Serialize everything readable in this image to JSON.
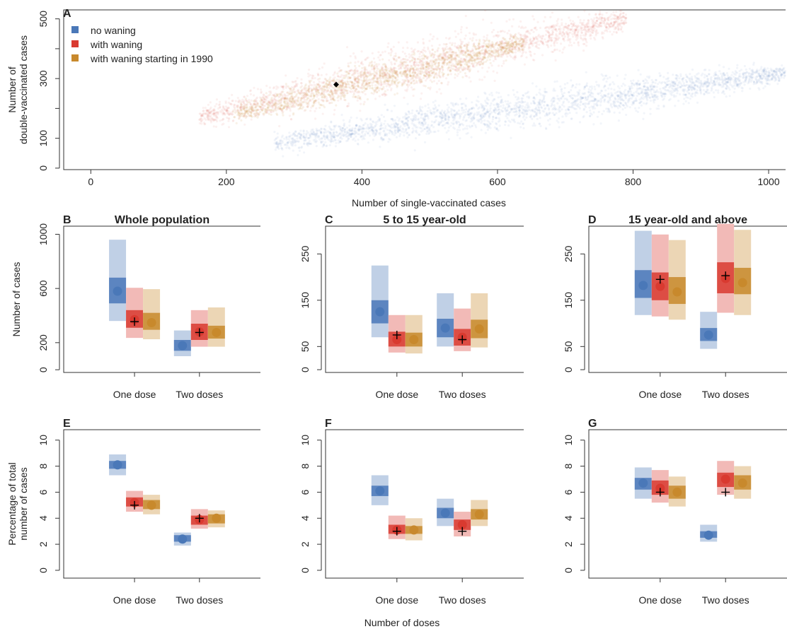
{
  "colors": {
    "no_waning": "#4a78b8",
    "with_waning": "#d93a30",
    "with_waning_1990": "#c8892c",
    "axis": "#333333",
    "marker": "#000000"
  },
  "footer_xlabel": "Number of doses",
  "chart_data": [
    {
      "panel": "A",
      "type": "scatter",
      "xlabel": "Number of single-vaccinated cases",
      "ylabel": [
        "Number of",
        "double-vaccinated cases"
      ],
      "xlim": [
        -40,
        1025
      ],
      "ylim": [
        -5,
        530
      ],
      "xticks": [
        0,
        200,
        400,
        600,
        800,
        1000
      ],
      "yticks": [
        0,
        100,
        300,
        500
      ],
      "legend": {
        "placement": "top-left",
        "entries": [
          "no waning",
          "with waning",
          "with waning starting in 1990"
        ]
      },
      "clouds": [
        {
          "name": "no waning",
          "x_range": [
            270,
            1030
          ],
          "y_at_x_start": 85,
          "y_at_x_end": 320,
          "spread": 22,
          "points": 2600
        },
        {
          "name": "with waning",
          "x_range": [
            160,
            790
          ],
          "y_at_x_start": 170,
          "y_at_x_end": 500,
          "spread": 28,
          "points": 2200
        },
        {
          "name": "with waning starting in 1990",
          "x_range": [
            210,
            640
          ],
          "y_at_x_start": 180,
          "y_at_x_end": 420,
          "spread": 20,
          "points": 1400
        }
      ],
      "observed": {
        "x": 362,
        "y": 280
      }
    },
    {
      "panel": "B",
      "type": "box",
      "title": "Whole population",
      "ylabel": "Number of cases",
      "ylim": [
        -20,
        1060
      ],
      "yticks": [
        0,
        200,
        600,
        1000
      ],
      "categories": [
        "One dose",
        "Two doses"
      ],
      "series": [
        {
          "name": "no waning",
          "values": [
            {
              "outer": [
                360,
                960
              ],
              "inner": [
                490,
                680
              ],
              "median": 580
            },
            {
              "outer": [
                100,
                290
              ],
              "inner": [
                140,
                220
              ],
              "median": 178
            }
          ]
        },
        {
          "name": "with waning",
          "values": [
            {
              "outer": [
                235,
                605
              ],
              "inner": [
                310,
                440
              ],
              "median": 370
            },
            {
              "outer": [
                170,
                440
              ],
              "inner": [
                220,
                340
              ],
              "median": 280
            }
          ]
        },
        {
          "name": "with waning starting in 1990",
          "values": [
            {
              "outer": [
                225,
                595
              ],
              "inner": [
                295,
                420
              ],
              "median": 348
            },
            {
              "outer": [
                170,
                460
              ],
              "inner": [
                230,
                325
              ],
              "median": 275
            }
          ]
        }
      ],
      "observed": [
        355,
        275
      ]
    },
    {
      "panel": "C",
      "type": "box",
      "title": "5 to 15 year-old",
      "ylabel": "",
      "ylim": [
        -6,
        310
      ],
      "yticks": [
        0,
        50,
        150,
        250
      ],
      "categories": [
        "One dose",
        "Two doses"
      ],
      "series": [
        {
          "name": "no waning",
          "values": [
            {
              "outer": [
                70,
                225
              ],
              "inner": [
                100,
                150
              ],
              "median": 125
            },
            {
              "outer": [
                50,
                165
              ],
              "inner": [
                70,
                110
              ],
              "median": 90
            }
          ]
        },
        {
          "name": "with waning",
          "values": [
            {
              "outer": [
                37,
                118
              ],
              "inner": [
                50,
                82
              ],
              "median": 65
            },
            {
              "outer": [
                40,
                132
              ],
              "inner": [
                52,
                88
              ],
              "median": 70
            }
          ]
        },
        {
          "name": "with waning starting in 1990",
          "values": [
            {
              "outer": [
                35,
                118
              ],
              "inner": [
                50,
                80
              ],
              "median": 65
            },
            {
              "outer": [
                48,
                165
              ],
              "inner": [
                68,
                108
              ],
              "median": 88
            }
          ]
        }
      ],
      "observed": [
        75,
        65
      ]
    },
    {
      "panel": "D",
      "type": "box",
      "title": "15 year-old and above",
      "ylabel": "",
      "ylim": [
        -6,
        310
      ],
      "yticks": [
        0,
        50,
        150,
        250
      ],
      "categories": [
        "One dose",
        "Two doses"
      ],
      "series": [
        {
          "name": "no waning",
          "values": [
            {
              "outer": [
                118,
                300
              ],
              "inner": [
                155,
                215
              ],
              "median": 182
            },
            {
              "outer": [
                45,
                125
              ],
              "inner": [
                62,
                90
              ],
              "median": 75
            }
          ]
        },
        {
          "name": "with waning",
          "values": [
            {
              "outer": [
                115,
                292
              ],
              "inner": [
                150,
                210
              ],
              "median": 180
            },
            {
              "outer": [
                123,
                315
              ],
              "inner": [
                165,
                232
              ],
              "median": 197
            }
          ]
        },
        {
          "name": "with waning starting in 1990",
          "values": [
            {
              "outer": [
                108,
                280
              ],
              "inner": [
                142,
                200
              ],
              "median": 168
            },
            {
              "outer": [
                118,
                302
              ],
              "inner": [
                163,
                220
              ],
              "median": 188
            }
          ]
        }
      ],
      "observed": [
        195,
        203
      ]
    },
    {
      "panel": "E",
      "type": "box",
      "title": "",
      "ylabel": [
        "Percentage of total",
        "number of cases"
      ],
      "ylim": [
        -0.6,
        10.8
      ],
      "yticks": [
        0,
        2,
        4,
        6,
        8,
        10
      ],
      "categories": [
        "One dose",
        "Two doses"
      ],
      "series": [
        {
          "name": "no waning",
          "values": [
            {
              "outer": [
                7.3,
                8.9
              ],
              "inner": [
                7.8,
                8.4
              ],
              "median": 8.1
            },
            {
              "outer": [
                1.9,
                2.9
              ],
              "inner": [
                2.2,
                2.7
              ],
              "median": 2.4
            }
          ]
        },
        {
          "name": "with waning",
          "values": [
            {
              "outer": [
                4.5,
                6.1
              ],
              "inner": [
                4.9,
                5.6
              ],
              "median": 5.2
            },
            {
              "outer": [
                3.2,
                4.7
              ],
              "inner": [
                3.5,
                4.2
              ],
              "median": 3.9
            }
          ]
        },
        {
          "name": "with waning starting in 1990",
          "values": [
            {
              "outer": [
                4.3,
                5.8
              ],
              "inner": [
                4.7,
                5.4
              ],
              "median": 5.0
            },
            {
              "outer": [
                3.3,
                4.6
              ],
              "inner": [
                3.6,
                4.3
              ],
              "median": 4.0
            }
          ]
        }
      ],
      "observed": [
        5.0,
        4.0
      ]
    },
    {
      "panel": "F",
      "type": "box",
      "title": "",
      "ylabel": "",
      "ylim": [
        -0.6,
        10.8
      ],
      "yticks": [
        0,
        2,
        4,
        6,
        8,
        10
      ],
      "categories": [
        "One dose",
        "Two doses"
      ],
      "series": [
        {
          "name": "no waning",
          "values": [
            {
              "outer": [
                5.0,
                7.3
              ],
              "inner": [
                5.7,
                6.5
              ],
              "median": 6.1
            },
            {
              "outer": [
                3.4,
                5.5
              ],
              "inner": [
                4.0,
                4.8
              ],
              "median": 4.4
            }
          ]
        },
        {
          "name": "with waning",
          "values": [
            {
              "outer": [
                2.4,
                4.2
              ],
              "inner": [
                2.8,
                3.5
              ],
              "median": 3.1
            },
            {
              "outer": [
                2.6,
                4.5
              ],
              "inner": [
                3.1,
                3.9
              ],
              "median": 3.5
            }
          ]
        },
        {
          "name": "with waning starting in 1990",
          "values": [
            {
              "outer": [
                2.3,
                4.0
              ],
              "inner": [
                2.8,
                3.4
              ],
              "median": 3.1
            },
            {
              "outer": [
                3.4,
                5.4
              ],
              "inner": [
                3.9,
                4.7
              ],
              "median": 4.3
            }
          ]
        }
      ],
      "observed": [
        3.0,
        3.0
      ]
    },
    {
      "panel": "G",
      "type": "box",
      "title": "",
      "ylabel": "",
      "ylim": [
        -0.6,
        10.8
      ],
      "yticks": [
        0,
        2,
        4,
        6,
        8,
        10
      ],
      "categories": [
        "One dose",
        "Two doses"
      ],
      "series": [
        {
          "name": "no waning",
          "values": [
            {
              "outer": [
                5.5,
                7.9
              ],
              "inner": [
                6.2,
                7.1
              ],
              "median": 6.7
            },
            {
              "outer": [
                2.2,
                3.5
              ],
              "inner": [
                2.5,
                3.0
              ],
              "median": 2.7
            }
          ]
        },
        {
          "name": "with waning",
          "values": [
            {
              "outer": [
                5.2,
                7.7
              ],
              "inner": [
                5.8,
                6.9
              ],
              "median": 6.3
            },
            {
              "outer": [
                5.8,
                8.4
              ],
              "inner": [
                6.4,
                7.5
              ],
              "median": 7.0
            }
          ]
        },
        {
          "name": "with waning starting in 1990",
          "values": [
            {
              "outer": [
                4.9,
                7.2
              ],
              "inner": [
                5.5,
                6.5
              ],
              "median": 6.0
            },
            {
              "outer": [
                5.5,
                8.0
              ],
              "inner": [
                6.2,
                7.3
              ],
              "median": 6.7
            }
          ]
        }
      ],
      "observed": [
        6.0,
        6.0
      ]
    }
  ]
}
